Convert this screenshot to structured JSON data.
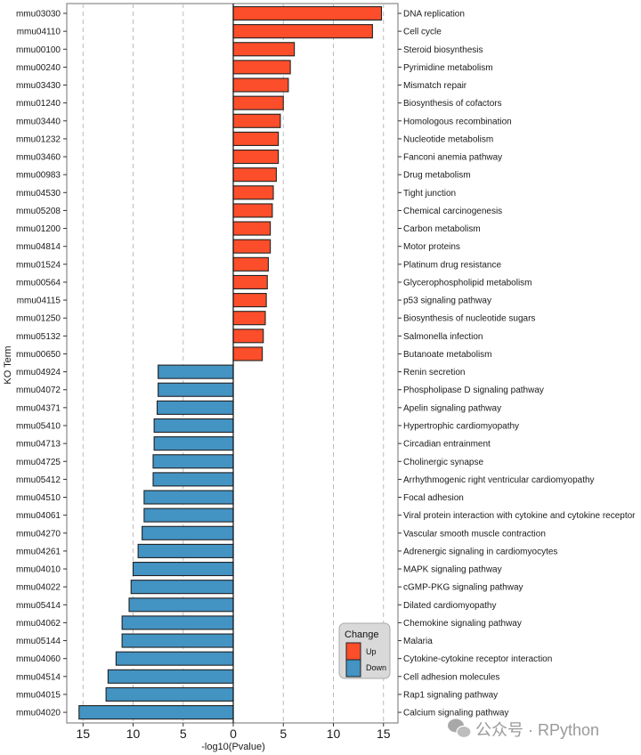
{
  "chart_data": {
    "type": "bar",
    "orientation": "horizontal",
    "xlabel": "-log10(Pvalue)",
    "ylabel": "KO Term",
    "xlim": [
      -16.5,
      16.5
    ],
    "xticks": [
      -15,
      -10,
      -5,
      0,
      5,
      10,
      15
    ],
    "xtick_labels": [
      "15",
      "10",
      "5",
      "0",
      "5",
      "10",
      "15"
    ],
    "grid": "vertical dashed",
    "legend": {
      "title": "Change",
      "position": "bottom-right",
      "entries": [
        {
          "label": "Up",
          "color": "#FC4E2A"
        },
        {
          "label": "Down",
          "color": "#4393C3"
        }
      ]
    },
    "series": [
      {
        "name": "Up",
        "color": "#FC4E2A",
        "ids": [
          "mmu03030",
          "mmu04110",
          "mmu00100",
          "mmu00240",
          "mmu03430",
          "mmu01240",
          "mmu03440",
          "mmu01232",
          "mmu03460",
          "mmu00983",
          "mmu04530",
          "mmu05208",
          "mmu01200",
          "mmu04814",
          "mmu01524",
          "mmu00564",
          "mmu04115",
          "mmu01250",
          "mmu05132",
          "mmu00650"
        ],
        "terms": [
          "DNA replication",
          "Cell cycle",
          "Steroid biosynthesis",
          "Pyrimidine metabolism",
          "Mismatch repair",
          "Biosynthesis of cofactors",
          "Homologous recombination",
          "Nucleotide metabolism",
          "Fanconi anemia pathway",
          "Drug metabolism",
          "Tight junction",
          "Chemical carcinogenesis",
          "Carbon metabolism",
          "Motor proteins",
          "Platinum drug resistance",
          "Glycerophospholipid metabolism",
          "p53 signaling pathway",
          "Biosynthesis of nucleotide sugars",
          "Salmonella infection",
          "Butanoate metabolism"
        ],
        "values": [
          14.8,
          13.9,
          6.1,
          5.7,
          5.5,
          5.0,
          4.7,
          4.5,
          4.5,
          4.3,
          4.0,
          3.9,
          3.7,
          3.7,
          3.5,
          3.4,
          3.3,
          3.2,
          3.0,
          2.9
        ]
      },
      {
        "name": "Down",
        "color": "#4393C3",
        "ids": [
          "mmu04924",
          "mmu04072",
          "mmu04371",
          "mmu05410",
          "mmu04713",
          "mmu04725",
          "mmu05412",
          "mmu04510",
          "mmu04061",
          "mmu04270",
          "mmu04261",
          "mmu04010",
          "mmu04022",
          "mmu05414",
          "mmu04062",
          "mmu05144",
          "mmu04060",
          "mmu04514",
          "mmu04015",
          "mmu04020"
        ],
        "terms": [
          "Renin secretion",
          "Phospholipase D signaling pathway",
          "Apelin signaling pathway",
          "Hypertrophic cardiomyopathy",
          "Circadian entrainment",
          "Cholinergic synapse",
          "Arrhythmogenic right ventricular cardiomyopathy",
          "Focal adhesion",
          "Viral protein interaction with cytokine and cytokine receptor",
          "Vascular smooth muscle contraction",
          "Adrenergic signaling in cardiomyocytes",
          "MAPK signaling pathway",
          "cGMP-PKG signaling pathway",
          "Dilated cardiomyopathy",
          "Chemokine signaling pathway",
          "Malaria",
          "Cytokine-cytokine receptor interaction",
          "Cell adhesion molecules",
          "Rap1 signaling pathway",
          "Calcium signaling pathway"
        ],
        "values": [
          7.5,
          7.5,
          7.6,
          7.9,
          7.9,
          8.0,
          8.0,
          8.9,
          8.9,
          9.1,
          9.5,
          10.0,
          10.2,
          10.4,
          11.1,
          11.1,
          11.7,
          12.5,
          12.7,
          15.4
        ]
      }
    ]
  },
  "watermark": {
    "text": "公众号 · RPython",
    "icon": "wechat-icon"
  }
}
